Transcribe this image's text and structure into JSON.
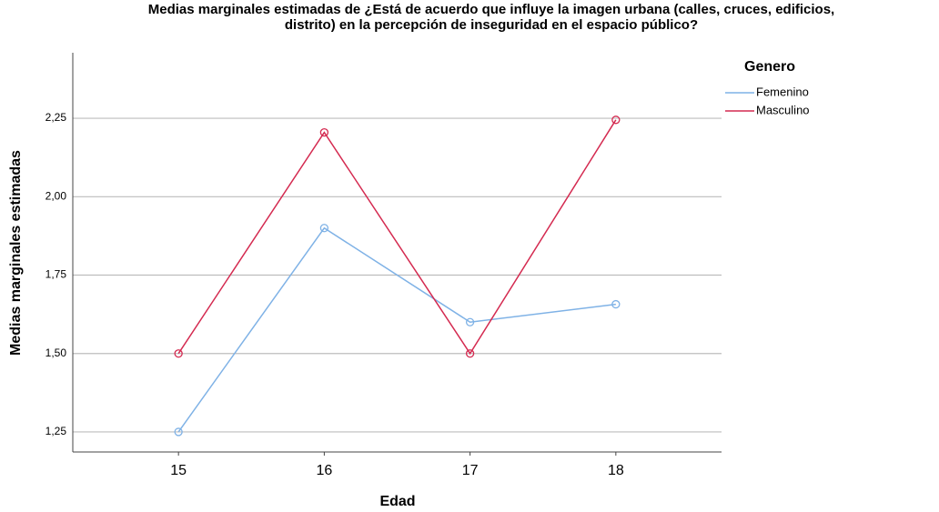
{
  "chart_data": {
    "type": "line",
    "title": [
      "Medias marginales estimadas de ¿Está de acuerdo que influye la imagen urbana (calles, cruces, edificios,",
      "distrito) en la percepción de inseguridad en el espacio público?"
    ],
    "x_label": "Edad",
    "y_label": "Medias marginales estimadas",
    "x": [
      15,
      16,
      17,
      18
    ],
    "xlim": [
      14.275,
      18.725
    ],
    "xticks": [
      15,
      16,
      17,
      18
    ],
    "ylim": [
      1.186,
      2.459
    ],
    "yticks": [
      {
        "value": 1.25,
        "label": "1,25"
      },
      {
        "value": 1.5,
        "label": "1,50"
      },
      {
        "value": 1.75,
        "label": "1,75"
      },
      {
        "value": 2.0,
        "label": "2,00"
      },
      {
        "value": 2.25,
        "label": "2,25"
      }
    ],
    "grid": true,
    "legend_title": "Genero",
    "legend_position": "right",
    "series": [
      {
        "name": "Femenino",
        "color": "#7fb2e6",
        "values": [
          1.25,
          1.9,
          1.6,
          1.657
        ]
      },
      {
        "name": "Masculino",
        "color": "#d42a50",
        "values": [
          1.5,
          2.205,
          1.5,
          2.245
        ]
      }
    ]
  }
}
